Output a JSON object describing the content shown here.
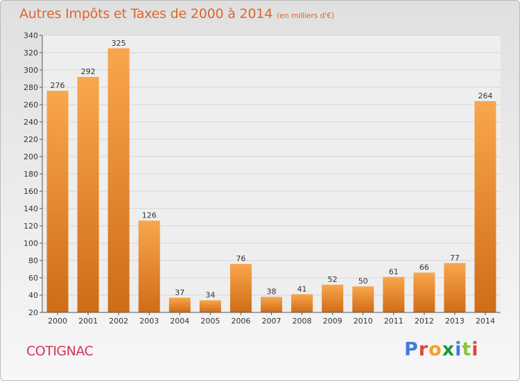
{
  "header": {
    "title": "Autres Impôts et Taxes de 2000 à 2014",
    "subtitle": "(en milliers d'€)"
  },
  "footer": {
    "town": "COTIGNAC",
    "logo": "Proxiti"
  },
  "colors": {
    "bar_top": "#f9a64c",
    "bar_bottom": "#d06c17",
    "title": "#e0642a",
    "town": "#d8325a",
    "logo": [
      "#3f7bd9",
      "#e0453c",
      "#f3a11f",
      "#1a9a3a",
      "#3f7bd9",
      "#8bc63f",
      "#e0453c"
    ]
  },
  "chart_data": {
    "type": "bar",
    "title": "Autres Impôts et Taxes de 2000 à 2014",
    "subtitle": "(en milliers d'€)",
    "categories": [
      "2000",
      "2001",
      "2002",
      "2003",
      "2004",
      "2005",
      "2006",
      "2007",
      "2008",
      "2009",
      "2010",
      "2011",
      "2012",
      "2013",
      "2014"
    ],
    "values": [
      276,
      292,
      325,
      126,
      37,
      34,
      76,
      38,
      41,
      52,
      50,
      61,
      66,
      77,
      264
    ],
    "xlabel": "",
    "ylabel": "",
    "ylim": [
      20,
      340
    ],
    "yticks": [
      20,
      40,
      60,
      80,
      100,
      120,
      140,
      160,
      180,
      200,
      220,
      240,
      260,
      280,
      300,
      320,
      340
    ],
    "grid": true,
    "legend": "none"
  }
}
